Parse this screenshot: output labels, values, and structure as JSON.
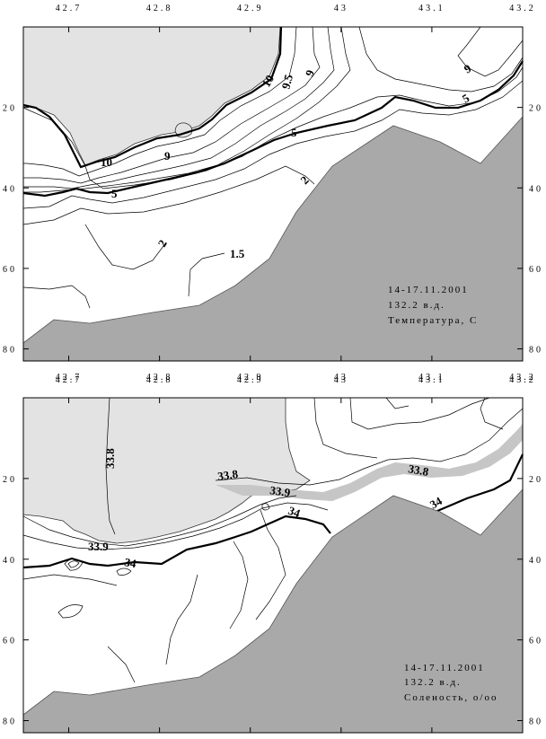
{
  "chart_data": [
    {
      "type": "contour",
      "x_ticks": [
        "42.7",
        "42.8",
        "42.9",
        "43",
        "43.1",
        "43.2"
      ],
      "y_ticks": [
        "20",
        "40",
        "60",
        "80"
      ],
      "xlim": [
        42.65,
        43.2
      ],
      "ylim": [
        0,
        83
      ],
      "y_inverted": true,
      "contour_labels": [
        "10",
        "9.5",
        "9",
        "9",
        "5",
        "10",
        "9",
        "5",
        "5",
        "2",
        "2",
        "1.5"
      ],
      "bold_levels": [
        "10",
        "5"
      ],
      "info_lines": [
        "14-17.11.2001",
        "132.2 в.д.",
        "Температура, С"
      ]
    },
    {
      "type": "contour",
      "x_ticks": [
        "42.7",
        "42.8",
        "42.9",
        "43",
        "43.1",
        "43.2"
      ],
      "y_ticks": [
        "20",
        "40",
        "60",
        "80"
      ],
      "xlim": [
        42.65,
        43.2
      ],
      "ylim": [
        0,
        83
      ],
      "y_inverted": true,
      "contour_labels": [
        "33.8",
        "33.8",
        "33.9",
        "34",
        "33.8",
        "34",
        "33.9",
        "34"
      ],
      "bold_levels": [
        "34"
      ],
      "info_lines": [
        "14-17.11.2001",
        "132.2 в.д.",
        "Соленость, о/оо"
      ]
    }
  ]
}
